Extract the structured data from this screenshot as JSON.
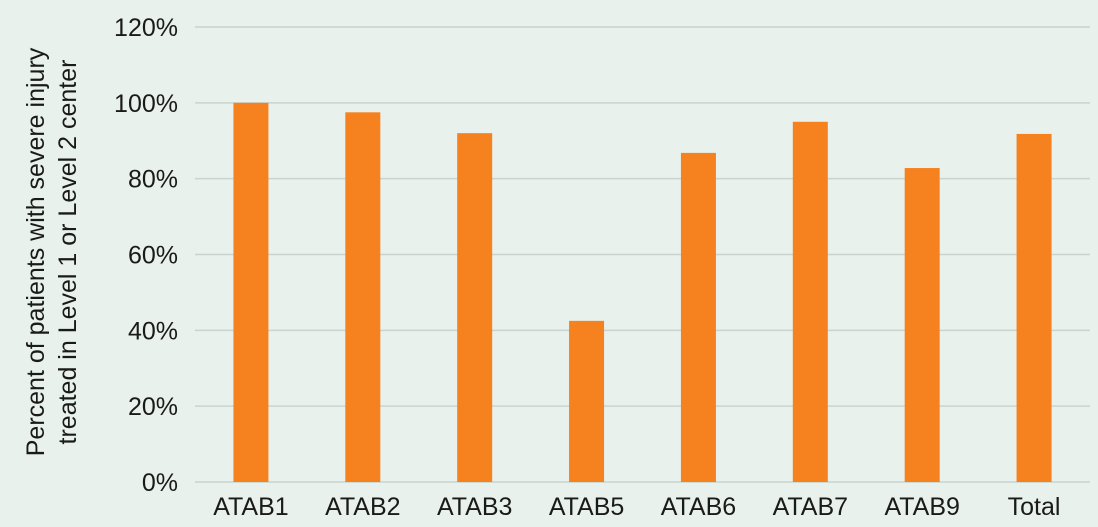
{
  "chart_data": {
    "type": "bar",
    "categories": [
      "ATAB1",
      "ATAB2",
      "ATAB3",
      "ATAB5",
      "ATAB6",
      "ATAB7",
      "ATAB9",
      "Total"
    ],
    "values": [
      100,
      97.5,
      92,
      42.5,
      86.8,
      95,
      82.8,
      91.8
    ],
    "title": "",
    "xlabel": "",
    "ylabel_lines": [
      "Percent of patients with severe injury",
      "treated in Level 1 or Level 2 center"
    ],
    "ylim": [
      0,
      120
    ],
    "yticks": [
      0,
      20,
      40,
      60,
      80,
      100,
      120
    ],
    "ytick_labels": [
      "0%",
      "20%",
      "40%",
      "60%",
      "80%",
      "100%",
      "120%"
    ],
    "grid": true,
    "legend": "none",
    "bar_color": "#f5811f",
    "grid_color": "#c9d4ce",
    "background": "#e8f1ec"
  }
}
